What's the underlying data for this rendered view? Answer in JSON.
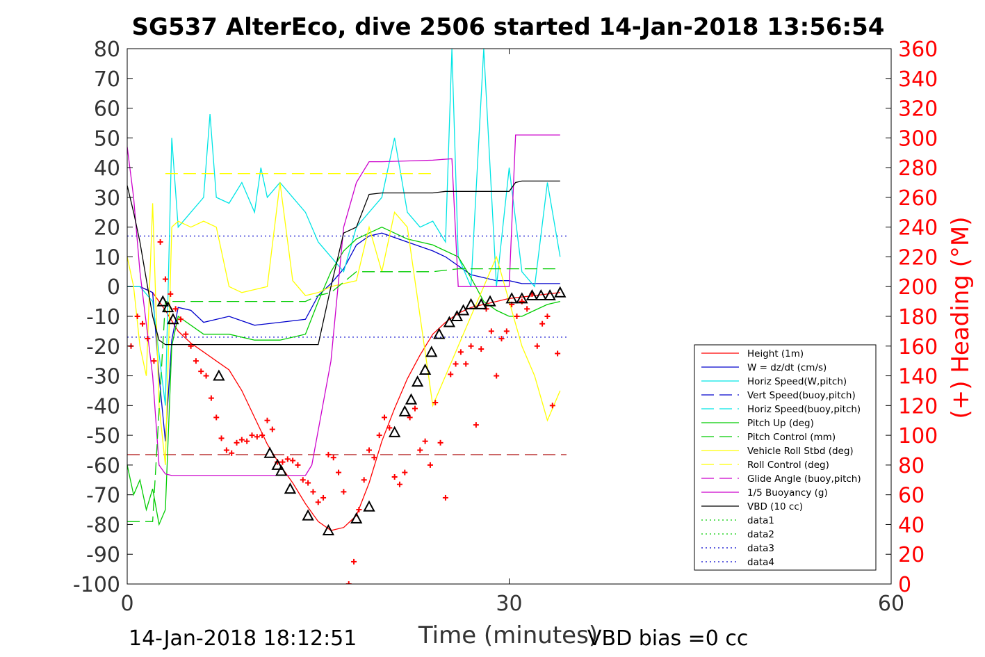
{
  "chart_data": {
    "type": "line",
    "title": "SG537 AlterEco, dive 2506 started 14-Jan-2018 13:56:54",
    "xlabel": "Time (minutes)",
    "ylabel": "",
    "y2label": "(+) Heading (°M)",
    "xlim": [
      0,
      60
    ],
    "ylim": [
      -100,
      80
    ],
    "y2lim": [
      0,
      360
    ],
    "xticks": [
      0,
      30,
      60
    ],
    "yticks": [
      80,
      70,
      60,
      50,
      40,
      30,
      20,
      10,
      0,
      -10,
      -20,
      -30,
      -40,
      -50,
      -60,
      -70,
      -80,
      -90,
      -100
    ],
    "y2ticks": [
      360,
      340,
      320,
      300,
      280,
      260,
      240,
      220,
      200,
      180,
      160,
      140,
      120,
      100,
      80,
      60,
      40,
      20,
      0
    ],
    "footer_left": "14-Jan-2018 18:12:51",
    "footer_right": "VBD bias =0 cc",
    "grid": false,
    "legend_position": "lower-right",
    "legend": [
      {
        "label": "Height (1m)",
        "color": "#ff0000",
        "style": "solid"
      },
      {
        "label": "W = dz/dt (cm/s)",
        "color": "#0000cc",
        "style": "solid"
      },
      {
        "label": "Horiz Speed(W,pitch)",
        "color": "#00e5e5",
        "style": "solid"
      },
      {
        "label": "Vert Speed(buoy,pitch)",
        "color": "#0000cc",
        "style": "dashed"
      },
      {
        "label": "Horiz Speed(buoy,pitch)",
        "color": "#00e5e5",
        "style": "dashed"
      },
      {
        "label": "Pitch Up (deg)",
        "color": "#00cc00",
        "style": "solid"
      },
      {
        "label": "Pitch Control (mm)",
        "color": "#00cc00",
        "style": "dashed"
      },
      {
        "label": "Vehicle Roll Stbd (deg)",
        "color": "#ffff00",
        "style": "solid"
      },
      {
        "label": "Roll Control (deg)",
        "color": "#ffff00",
        "style": "dashed"
      },
      {
        "label": "Glide Angle (buoy,pitch)",
        "color": "#cc00cc",
        "style": "dashed"
      },
      {
        "label": "1/5 Buoyancy (g)",
        "color": "#cc00cc",
        "style": "solid"
      },
      {
        "label": "VBD (10 cc)",
        "color": "#000000",
        "style": "solid"
      },
      {
        "label": "data1",
        "color": "#00cc00",
        "style": "dotted"
      },
      {
        "label": "data2",
        "color": "#00cc00",
        "style": "dotted"
      },
      {
        "label": "data3",
        "color": "#0000cc",
        "style": "dotted"
      },
      {
        "label": "data4",
        "color": "#0000cc",
        "style": "dotted"
      }
    ],
    "series": [
      {
        "name": "Height (1m)",
        "color": "#ff0000",
        "style": "solid",
        "x": [
          0,
          1,
          2,
          3,
          4,
          5,
          6,
          7,
          8,
          9,
          10,
          11,
          12,
          13,
          14,
          15,
          16,
          17,
          18,
          19,
          20,
          21,
          22,
          23,
          24,
          25,
          26,
          27,
          28,
          29,
          30,
          31,
          32,
          33,
          34
        ],
        "y": [
          0,
          0,
          -2,
          -8,
          -15,
          -19,
          -22,
          -25,
          -28,
          -35,
          -44,
          -53,
          -60,
          -66,
          -73,
          -79,
          -82,
          -81,
          -77,
          -66,
          -52,
          -41,
          -31,
          -23,
          -16,
          -12,
          -9,
          -7,
          -6,
          -5,
          -4,
          -3.5,
          -3,
          -2.5,
          -2
        ]
      },
      {
        "name": "W = dz/dt (cm/s)",
        "color": "#0000cc",
        "style": "solid",
        "x": [
          0,
          1,
          2,
          2.5,
          3,
          3.5,
          4,
          5,
          6,
          8,
          10,
          12,
          14,
          15,
          16,
          17,
          18,
          19,
          20,
          22,
          24,
          25,
          26,
          27,
          28,
          29,
          30,
          31,
          32,
          33,
          34
        ],
        "y": [
          0,
          0,
          -2,
          -30,
          -52,
          -18,
          -7,
          -8,
          -12,
          -10,
          -13,
          -12,
          -11,
          -3,
          1,
          6,
          14,
          17,
          18,
          15,
          12,
          10,
          7,
          4,
          3,
          2,
          2,
          1,
          1,
          1,
          1
        ]
      },
      {
        "name": "Horiz Speed(W,pitch)",
        "color": "#00e5e5",
        "style": "solid",
        "x": [
          0,
          1,
          2,
          3,
          3.5,
          4,
          5,
          6,
          6.5,
          7,
          8,
          9,
          10,
          10.5,
          11,
          12,
          13,
          14,
          15,
          16,
          17,
          18,
          19,
          20,
          21,
          22,
          23,
          24,
          25,
          25.5,
          26,
          27,
          28,
          29,
          30,
          31,
          32,
          33,
          34
        ],
        "y": [
          0,
          0,
          -5,
          -40,
          50,
          20,
          25,
          30,
          58,
          30,
          28,
          35,
          25,
          40,
          30,
          35,
          30,
          25,
          15,
          10,
          5,
          20,
          25,
          30,
          50,
          25,
          20,
          22,
          15,
          80,
          10,
          0,
          80,
          0,
          40,
          5,
          0,
          35,
          10
        ]
      },
      {
        "name": "Pitch Up (deg)",
        "color": "#00cc00",
        "style": "solid",
        "x": [
          0,
          0.5,
          1,
          1.5,
          2,
          2.5,
          3,
          3.5,
          4,
          6,
          8,
          10,
          12,
          14,
          15,
          16,
          17,
          18,
          19,
          20,
          22,
          24,
          25,
          26,
          27,
          28,
          29,
          30,
          31,
          32,
          33,
          34
        ],
        "y": [
          -60,
          -70,
          -65,
          -75,
          -68,
          -80,
          -75,
          -20,
          -10,
          -16,
          -16,
          -18,
          -18,
          -16,
          -5,
          5,
          12,
          16,
          18,
          20,
          16,
          14,
          12,
          10,
          3,
          -5,
          -8,
          -10,
          -10,
          -8,
          -6,
          -5
        ]
      },
      {
        "name": "Vehicle Roll Stbd (deg)",
        "color": "#ffff00",
        "style": "solid",
        "x": [
          0,
          0.5,
          1,
          1.5,
          2,
          2.5,
          3,
          3.5,
          4,
          5,
          6,
          7,
          8,
          9,
          10,
          11,
          12,
          13,
          14,
          15,
          16,
          17,
          18,
          19,
          20,
          21,
          22,
          23,
          24,
          25,
          26,
          27,
          28,
          29,
          30,
          31,
          32,
          33,
          34
        ],
        "y": [
          10,
          0,
          -20,
          -30,
          28,
          -40,
          -60,
          20,
          22,
          20,
          22,
          20,
          0,
          -2,
          -1,
          0,
          35,
          2,
          -3,
          -2,
          0,
          1,
          2,
          20,
          5,
          25,
          20,
          -10,
          -40,
          -30,
          -20,
          -10,
          0,
          10,
          -5,
          -20,
          -30,
          -45,
          -35
        ]
      },
      {
        "name": "1/5 Buoyancy (g)",
        "color": "#cc00cc",
        "style": "solid",
        "x": [
          0,
          0.5,
          1,
          2,
          2.5,
          3,
          3.5,
          10,
          14,
          14.5,
          16,
          17,
          18,
          19,
          20,
          24,
          25.5,
          26,
          30,
          30.5,
          31,
          34
        ],
        "y": [
          47,
          30,
          5,
          -30,
          -60,
          -63,
          -63.5,
          -63.5,
          -63.5,
          -60,
          -25,
          20,
          35,
          42,
          42,
          42.5,
          43,
          0,
          0,
          51,
          51,
          51
        ]
      },
      {
        "name": "VBD (10 cc)",
        "color": "#000000",
        "style": "solid",
        "x": [
          0,
          0.5,
          1,
          2,
          2.5,
          3,
          12,
          14,
          15,
          16,
          17,
          18,
          19,
          20,
          24,
          25,
          29,
          30,
          30.5,
          31,
          34
        ],
        "y": [
          34,
          25,
          15,
          -10,
          -18,
          -19.5,
          -19.5,
          -19.5,
          -19.5,
          0,
          18,
          20,
          31,
          31.5,
          31.5,
          32,
          32,
          32,
          35,
          35.5,
          35.5
        ]
      },
      {
        "name": "Roll Control (deg)",
        "color": "#ffff00",
        "style": "dashed",
        "x": [
          3,
          4,
          5,
          6,
          7,
          8,
          9,
          10,
          11,
          12,
          13,
          14,
          15,
          16,
          17,
          18,
          19,
          20,
          21,
          22,
          23,
          24
        ],
        "y": [
          38,
          38,
          38,
          38,
          38,
          38,
          38,
          38,
          38,
          38,
          38,
          38,
          38,
          38,
          38,
          38,
          38,
          38,
          38,
          38,
          38,
          38
        ]
      },
      {
        "name": "Pitch Control (mm)",
        "color": "#00cc00",
        "style": "dashed",
        "x": [
          0,
          1,
          2,
          3,
          4,
          6,
          8,
          10,
          12,
          14,
          15,
          16,
          18,
          20,
          22,
          24,
          26,
          28,
          30,
          32,
          34
        ],
        "y": [
          -79,
          -79,
          -79,
          -5,
          -5,
          -5,
          -5,
          -5,
          -5,
          -5,
          -3,
          -2,
          5,
          5,
          5,
          5,
          6,
          6,
          6,
          6,
          6
        ]
      }
    ],
    "reference_lines": [
      {
        "label": "data3",
        "color": "#0000cc",
        "style": "dotted",
        "y": 17
      },
      {
        "label": "data4",
        "color": "#0000cc",
        "style": "dotted",
        "y": -17
      },
      {
        "label": "",
        "color": "#aa0000",
        "style": "dashed",
        "y": -56.5
      }
    ],
    "heading_points": {
      "name": "(+) Heading (°M)",
      "color": "#ff0000",
      "marker": "+",
      "x": [
        0.3,
        0.8,
        1.2,
        1.6,
        2.1,
        2.6,
        3.0,
        3.4,
        3.8,
        4.2,
        4.6,
        5.0,
        5.4,
        5.8,
        6.2,
        6.6,
        7.0,
        7.4,
        7.8,
        8.2,
        8.6,
        9.0,
        9.4,
        9.8,
        10.2,
        10.6,
        11.0,
        11.4,
        11.8,
        12.2,
        12.6,
        13.0,
        13.4,
        13.8,
        14.2,
        14.6,
        15.0,
        15.4,
        15.8,
        16.2,
        16.6,
        17.0,
        17.4,
        17.8,
        18.2,
        18.6,
        19.0,
        19.4,
        19.8,
        20.2,
        20.6,
        21.0,
        21.4,
        21.8,
        22.2,
        22.6,
        23.0,
        23.4,
        23.8,
        24.2,
        24.6,
        25.0,
        25.4,
        25.8,
        26.2,
        26.6,
        27.0,
        27.4,
        27.8,
        28.2,
        28.6,
        29.0,
        29.4,
        29.8,
        30.2,
        30.6,
        31.0,
        31.4,
        31.8,
        32.2,
        32.6,
        33.0,
        33.4,
        33.8
      ],
      "y": [
        160,
        180,
        175,
        165,
        150,
        230,
        205,
        195,
        185,
        178,
        168,
        160,
        150,
        143,
        140,
        125,
        112,
        98,
        90,
        88,
        95,
        97,
        96,
        100,
        99,
        100,
        110,
        104,
        82,
        82,
        84,
        83,
        80,
        70,
        68,
        62,
        55,
        58,
        87,
        85,
        75,
        62,
        0,
        15,
        50,
        70,
        90,
        85,
        100,
        112,
        105,
        72,
        67,
        75,
        112,
        118,
        90,
        96,
        80,
        122,
        95,
        58,
        141,
        148,
        156,
        148,
        160,
        107,
        158,
        185,
        170,
        140,
        165,
        170,
        188,
        180,
        190,
        185,
        195,
        160,
        175,
        180,
        120,
        155
      ]
    },
    "dive_markers": {
      "marker": "triangle",
      "color": "#000000",
      "x": [
        2.8,
        3.2,
        3.6,
        7.2,
        11.2,
        11.8,
        12.1,
        12.8,
        14.2,
        15.8,
        18.0,
        19.0,
        21.0,
        21.8,
        22.3,
        22.8,
        23.4,
        23.9,
        24.5,
        25.3,
        25.9,
        26.4,
        27.0,
        27.8,
        28.5,
        30.2,
        31.0,
        31.8,
        32.5,
        33.2,
        34.0
      ],
      "y": [
        -5,
        -7,
        -11,
        -30,
        -56,
        -60,
        -62,
        -68,
        -77,
        -82,
        -78,
        -74,
        -49,
        -42,
        -38,
        -32,
        -28,
        -22,
        -16,
        -12,
        -10,
        -8,
        -6,
        -6,
        -5,
        -4,
        -4,
        -3,
        -3,
        -3,
        -2
      ]
    }
  }
}
